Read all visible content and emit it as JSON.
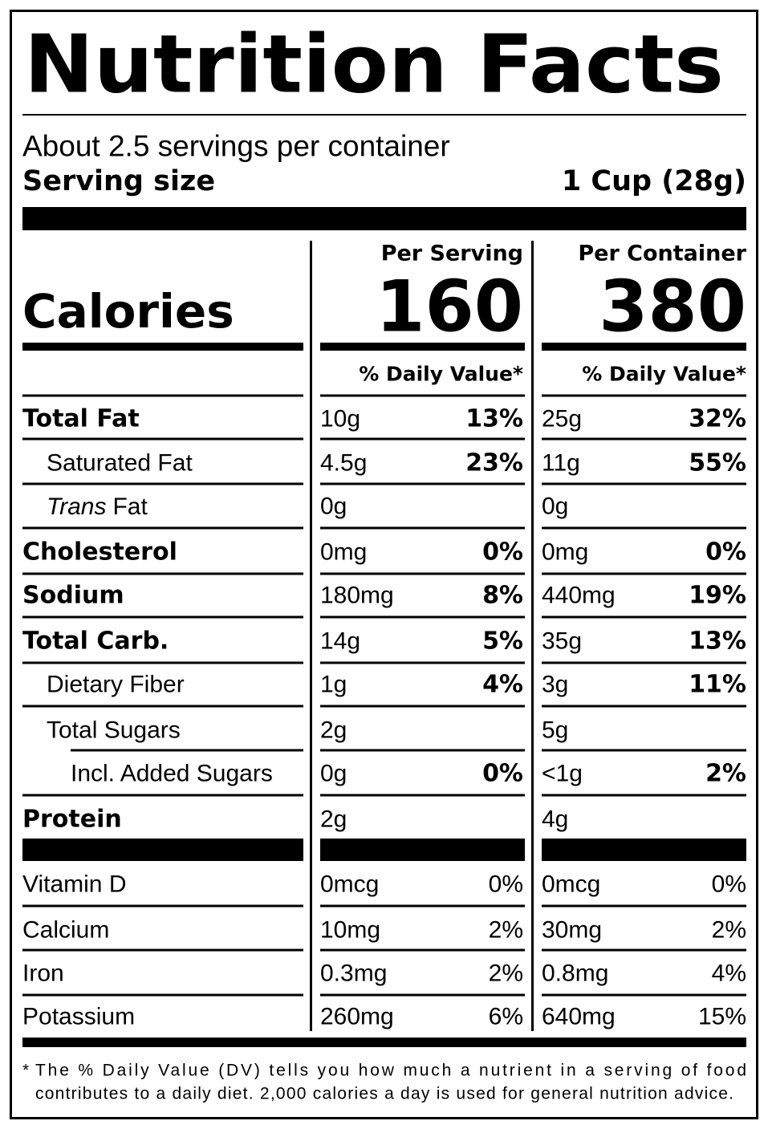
{
  "title": "Nutrition Facts",
  "servings": "About 2.5 servings per container",
  "serving_size": {
    "label": "Serving size",
    "value": "1 Cup (28g)"
  },
  "calories": {
    "label": "Calories",
    "per_serving": {
      "header": "Per Serving",
      "value": 160
    },
    "per_container": {
      "header": "Per Container",
      "value": 380
    }
  },
  "dv_header": [
    "% Daily Value*",
    "% Daily Value*"
  ],
  "nutrients": [
    {
      "name": "Total Fat",
      "serving": [
        "10g",
        "13%"
      ],
      "container": [
        "25g",
        "32%"
      ]
    },
    {
      "name": "Saturated Fat",
      "serving": [
        "4.5g",
        "23%"
      ],
      "container": [
        "11g",
        "55%"
      ]
    },
    {
      "name_italic": "Trans",
      "name": "Fat",
      "serving": [
        "0g"
      ],
      "container": [
        "0g"
      ]
    },
    {
      "name": "Cholesterol",
      "serving": [
        "0mg",
        "0%"
      ],
      "container": [
        "0mg",
        "0%"
      ]
    },
    {
      "name": "Sodium",
      "serving": [
        "180mg",
        "8%"
      ],
      "container": [
        "440mg",
        "19%"
      ]
    },
    {
      "name": "Total Carb.",
      "serving": [
        "14g",
        "5%"
      ],
      "container": [
        "35g",
        "13%"
      ]
    },
    {
      "name": "Dietary Fiber",
      "serving": [
        "1g",
        "4%"
      ],
      "container": [
        "3g",
        "11%"
      ]
    },
    {
      "name": "Total Sugars",
      "serving": [
        "2g"
      ],
      "container": [
        "5g"
      ]
    },
    {
      "name": "Incl. Added Sugars",
      "serving": [
        "0g",
        "0%"
      ],
      "container": [
        "<1g",
        "2%"
      ]
    },
    {
      "name": "Protein",
      "serving": [
        "2g"
      ],
      "container": [
        "4g"
      ]
    }
  ],
  "vitamins": [
    {
      "name": "Vitamin D",
      "serving": [
        "0mcg",
        "0%"
      ],
      "container": [
        "0mcg",
        "0%"
      ]
    },
    {
      "name": "Calcium",
      "serving": [
        "10mg",
        "2%"
      ],
      "container": [
        "30mg",
        "2%"
      ]
    },
    {
      "name": "Iron",
      "serving": [
        "0.3mg",
        "2%"
      ],
      "container": [
        "0.8mg",
        "4%"
      ]
    },
    {
      "name": "Potassium",
      "serving": [
        "260mg",
        "6%"
      ],
      "container": [
        "640mg",
        "15%"
      ]
    }
  ],
  "footnote": {
    "mark": "*",
    "lines": [
      "The % Daily Value (DV) tells you how much a nutrient in a serving of food",
      "contributes to a daily diet. 2,000 calories a day is used for general nutrition advice."
    ]
  }
}
